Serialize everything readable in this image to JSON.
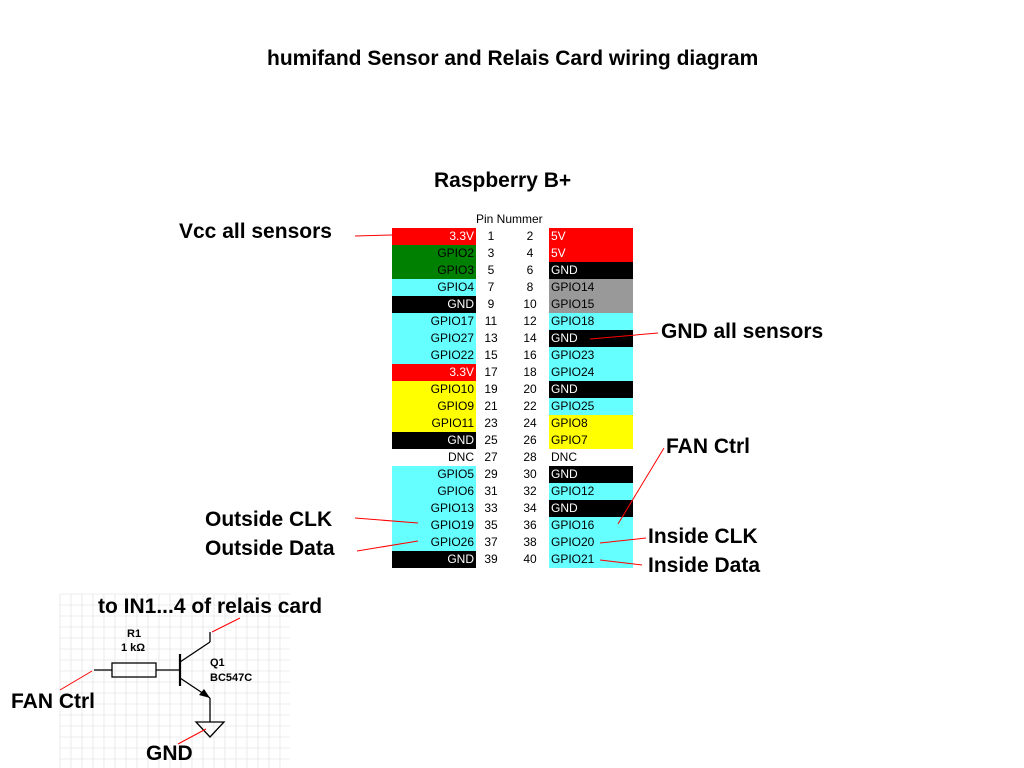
{
  "title": "humifand Sensor and Relais Card wiring diagram",
  "board": {
    "name": "Raspberry B+",
    "pin_header": "Pin Nummer",
    "rows": [
      {
        "left": "3.3V",
        "ln": "1",
        "rn": "2",
        "right": "5V",
        "lc": "#ff0000",
        "rc": "#ff0000",
        "lt": "#ffffff",
        "rt": "#ffffff"
      },
      {
        "left": "GPIO2",
        "ln": "3",
        "rn": "4",
        "right": "5V",
        "lc": "#008000",
        "rc": "#ff0000",
        "lt": "#000000",
        "rt": "#ffffff"
      },
      {
        "left": "GPIO3",
        "ln": "5",
        "rn": "6",
        "right": "GND",
        "lc": "#008000",
        "rc": "#000000",
        "lt": "#000000",
        "rt": "#ffffff"
      },
      {
        "left": "GPIO4",
        "ln": "7",
        "rn": "8",
        "right": "GPIO14",
        "lc": "#66ffff",
        "rc": "#999999",
        "lt": "#000000",
        "rt": "#000000"
      },
      {
        "left": "GND",
        "ln": "9",
        "rn": "10",
        "right": "GPIO15",
        "lc": "#000000",
        "rc": "#999999",
        "lt": "#ffffff",
        "rt": "#000000"
      },
      {
        "left": "GPIO17",
        "ln": "11",
        "rn": "12",
        "right": "GPIO18",
        "lc": "#66ffff",
        "rc": "#66ffff",
        "lt": "#000000",
        "rt": "#000000"
      },
      {
        "left": "GPIO27",
        "ln": "13",
        "rn": "14",
        "right": "GND",
        "lc": "#66ffff",
        "rc": "#000000",
        "lt": "#000000",
        "rt": "#ffffff"
      },
      {
        "left": "GPIO22",
        "ln": "15",
        "rn": "16",
        "right": "GPIO23",
        "lc": "#66ffff",
        "rc": "#66ffff",
        "lt": "#000000",
        "rt": "#000000"
      },
      {
        "left": "3.3V",
        "ln": "17",
        "rn": "18",
        "right": "GPIO24",
        "lc": "#ff0000",
        "rc": "#66ffff",
        "lt": "#ffffff",
        "rt": "#000000"
      },
      {
        "left": "GPIO10",
        "ln": "19",
        "rn": "20",
        "right": "GND",
        "lc": "#ffff00",
        "rc": "#000000",
        "lt": "#000000",
        "rt": "#ffffff"
      },
      {
        "left": "GPIO9",
        "ln": "21",
        "rn": "22",
        "right": "GPIO25",
        "lc": "#ffff00",
        "rc": "#66ffff",
        "lt": "#000000",
        "rt": "#000000"
      },
      {
        "left": "GPIO11",
        "ln": "23",
        "rn": "24",
        "right": "GPIO8",
        "lc": "#ffff00",
        "rc": "#ffff00",
        "lt": "#000000",
        "rt": "#000000"
      },
      {
        "left": "GND",
        "ln": "25",
        "rn": "26",
        "right": "GPIO7",
        "lc": "#000000",
        "rc": "#ffff00",
        "lt": "#ffffff",
        "rt": "#000000"
      },
      {
        "left": "DNC",
        "ln": "27",
        "rn": "28",
        "right": "DNC",
        "lc": "#ffffff",
        "rc": "#ffffff",
        "lt": "#000000",
        "rt": "#000000"
      },
      {
        "left": "GPIO5",
        "ln": "29",
        "rn": "30",
        "right": "GND",
        "lc": "#66ffff",
        "rc": "#000000",
        "lt": "#000000",
        "rt": "#ffffff"
      },
      {
        "left": "GPIO6",
        "ln": "31",
        "rn": "32",
        "right": "GPIO12",
        "lc": "#66ffff",
        "rc": "#66ffff",
        "lt": "#000000",
        "rt": "#000000"
      },
      {
        "left": "GPIO13",
        "ln": "33",
        "rn": "34",
        "right": "GND",
        "lc": "#66ffff",
        "rc": "#000000",
        "lt": "#000000",
        "rt": "#ffffff"
      },
      {
        "left": "GPIO19",
        "ln": "35",
        "rn": "36",
        "right": "GPIO16",
        "lc": "#66ffff",
        "rc": "#66ffff",
        "lt": "#000000",
        "rt": "#000000"
      },
      {
        "left": "GPIO26",
        "ln": "37",
        "rn": "38",
        "right": "GPIO20",
        "lc": "#66ffff",
        "rc": "#66ffff",
        "lt": "#000000",
        "rt": "#000000"
      },
      {
        "left": "GND",
        "ln": "39",
        "rn": "40",
        "right": "GPIO21",
        "lc": "#000000",
        "rc": "#66ffff",
        "lt": "#ffffff",
        "rt": "#000000"
      }
    ]
  },
  "callouts": {
    "vcc": "Vcc all sensors",
    "gnd": "GND all sensors",
    "fan": "FAN Ctrl",
    "out_clk": "Outside CLK",
    "out_data": "Outside Data",
    "in_clk": "Inside CLK",
    "in_data": "Inside Data"
  },
  "schematic": {
    "relais": "to IN1...4 of relais card",
    "fan": "FAN Ctrl",
    "gnd": "GND",
    "r_name": "R1",
    "r_value": "1 kΩ",
    "q_name": "Q1",
    "q_part": "BC547C"
  },
  "colors": {
    "leader": "#ff0000",
    "red": "#ff0000",
    "green": "#008000",
    "cyan": "#66ffff",
    "yellow": "#ffff00",
    "gray": "#999999",
    "black": "#000000",
    "grid": "#dddddd"
  }
}
